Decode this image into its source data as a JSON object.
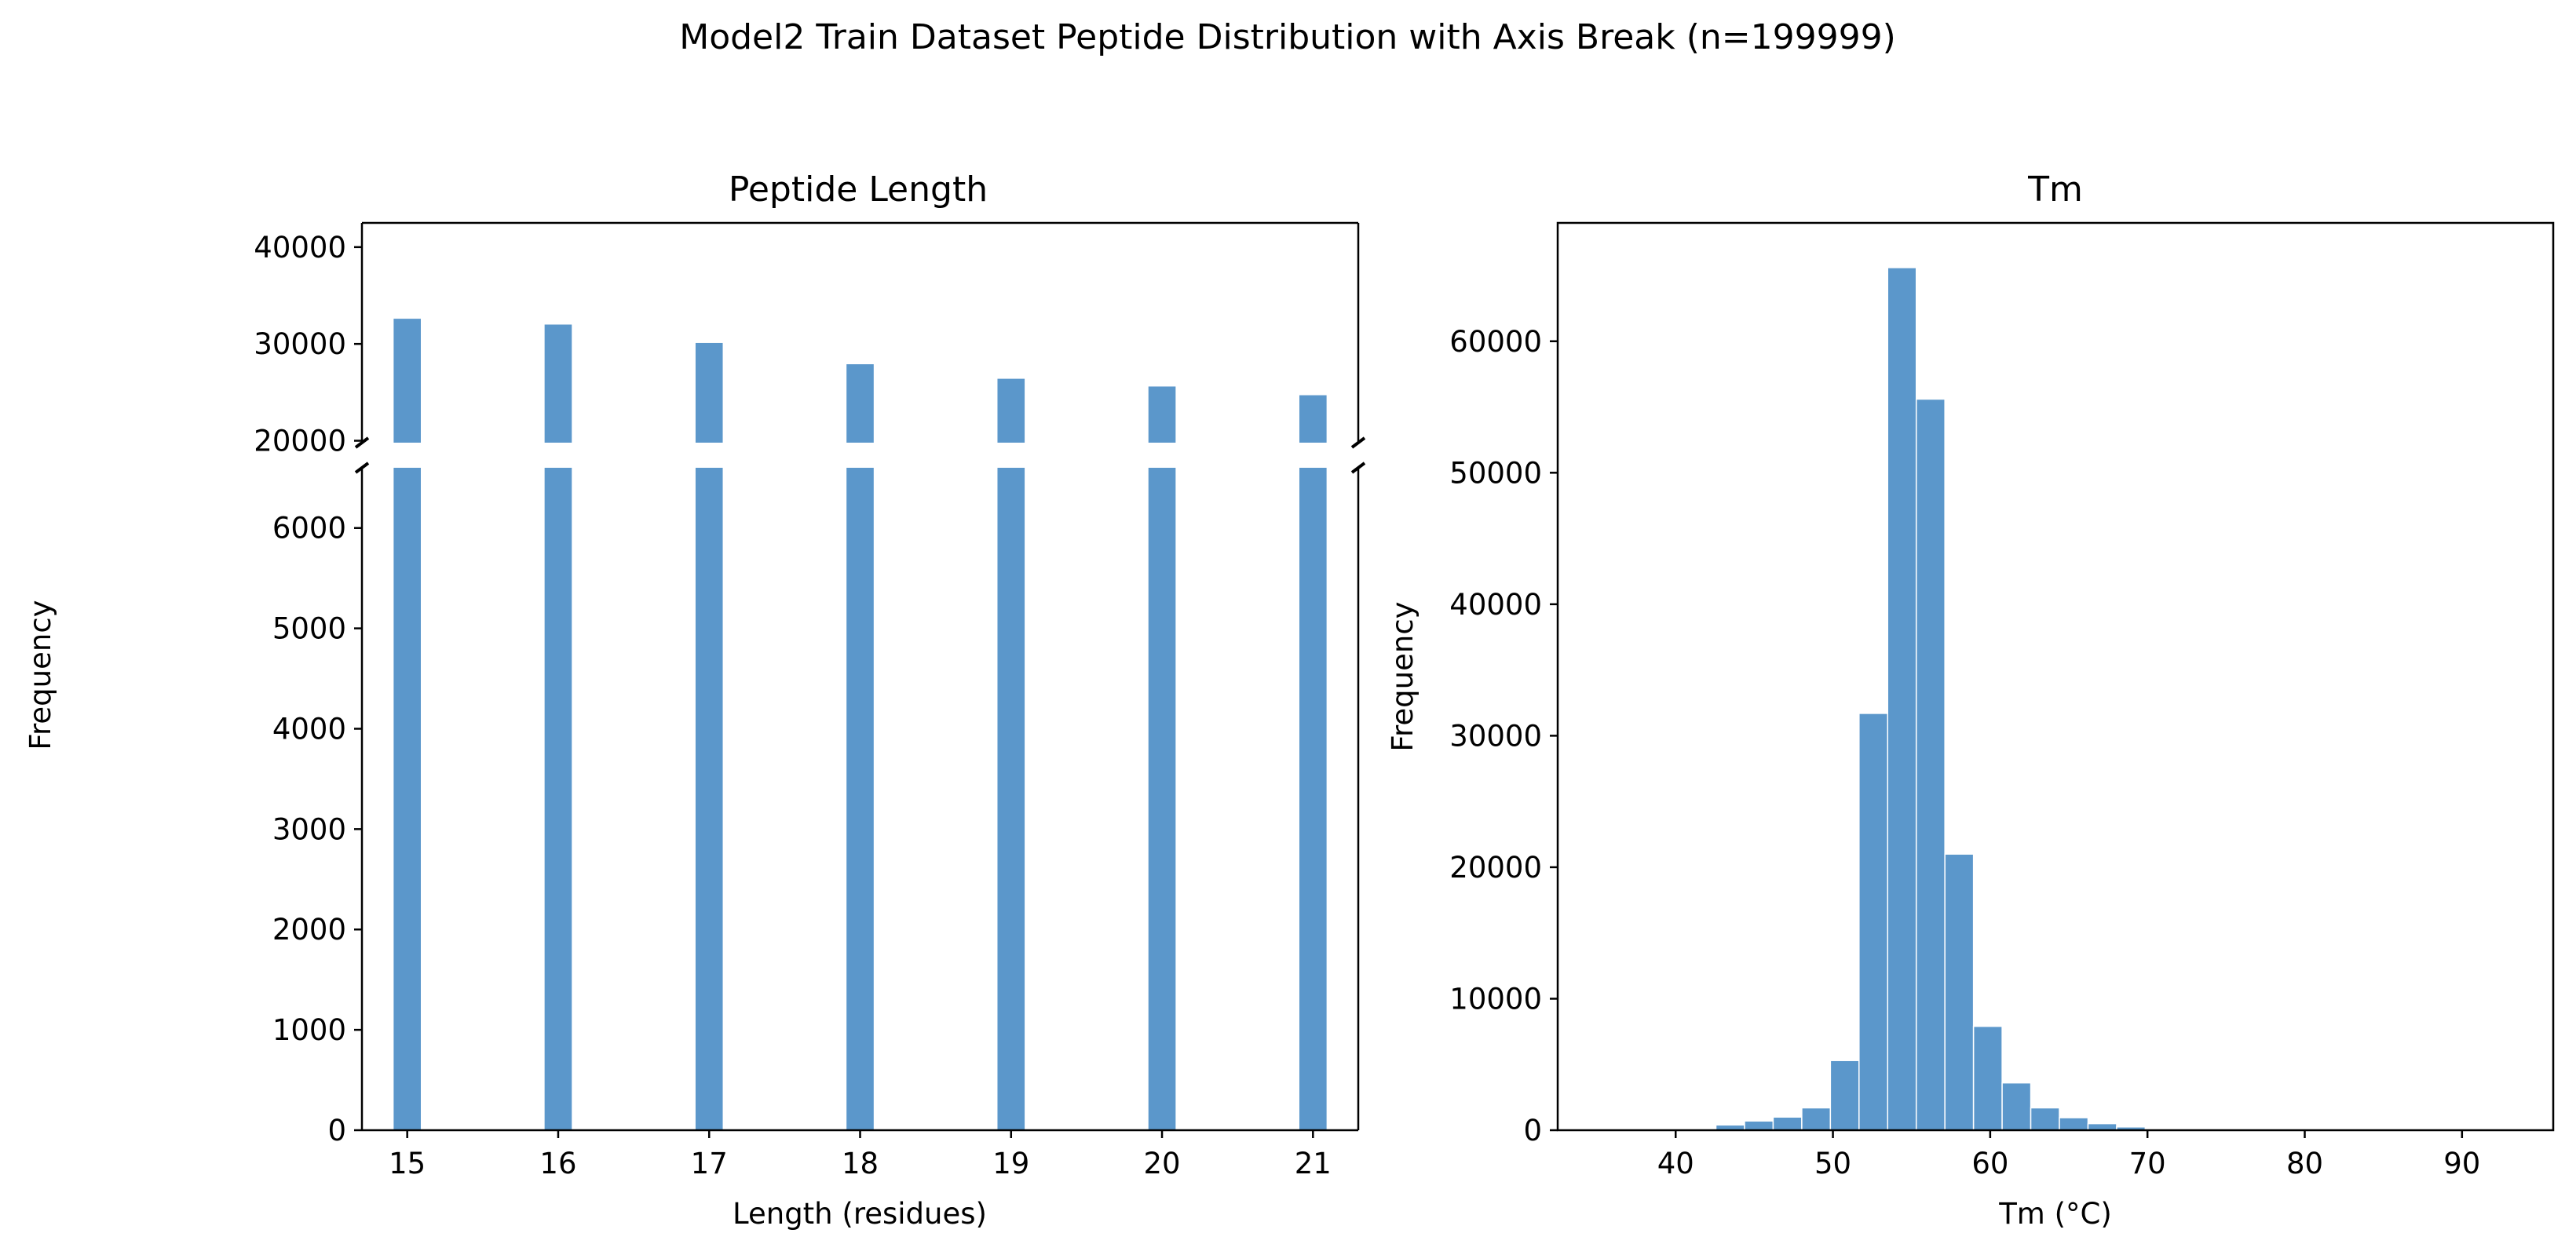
{
  "figure": {
    "title": "Model2 Train Dataset Peptide Distribution with Axis Break (n=199999)",
    "shared_ylabel": "Frequency"
  },
  "colors": {
    "bar": "#5b97cb",
    "axis": "#000000",
    "background": "#ffffff"
  },
  "chart_data": [
    {
      "type": "bar",
      "title": "Peptide Length",
      "xlabel": "Length (residues)",
      "ylabel": "Frequency",
      "axis_break": true,
      "xlim": [
        14.7,
        21.3
      ],
      "ylim_lower": [
        0,
        6600
      ],
      "ylim_upper": [
        19800,
        42500
      ],
      "x_ticks": [
        15,
        16,
        17,
        18,
        19,
        20,
        21
      ],
      "y_ticks_lower": [
        0,
        1000,
        2000,
        3000,
        4000,
        5000,
        6000
      ],
      "y_ticks_upper": [
        20000,
        30000,
        40000
      ],
      "categories": [
        15,
        16,
        17,
        18,
        19,
        20,
        21
      ],
      "values": [
        32600,
        32000,
        30100,
        27900,
        26400,
        25600,
        24700
      ],
      "grid": false,
      "legend": "none"
    },
    {
      "type": "bar",
      "title": "Tm",
      "xlabel": "Tm (°C)",
      "ylabel": "Frequency",
      "xlim": [
        32.5,
        95.8
      ],
      "ylim": [
        0,
        69000
      ],
      "x_ticks": [
        40,
        50,
        60,
        70,
        80,
        90
      ],
      "y_ticks": [
        0,
        10000,
        20000,
        30000,
        40000,
        50000,
        60000
      ],
      "bin_width": 1.82,
      "bin_edges": [
        35.28,
        37.1,
        38.92,
        40.74,
        42.56,
        44.38,
        46.2,
        48.02,
        49.84,
        51.66,
        53.48,
        55.3,
        57.12,
        58.94,
        60.76,
        62.58,
        64.4,
        66.22,
        68.04,
        69.86,
        71.68,
        73.5,
        75.32,
        77.14,
        78.96,
        80.78,
        82.6,
        84.42,
        86.24,
        88.06,
        89.88,
        91.7,
        93.52
      ],
      "values": [
        5,
        10,
        30,
        100,
        400,
        700,
        1000,
        1700,
        5300,
        31700,
        65600,
        55600,
        21000,
        7900,
        3600,
        1700,
        950,
        500,
        250,
        90,
        40,
        20,
        10,
        5,
        5,
        3,
        2,
        2,
        1,
        1,
        1,
        1
      ],
      "grid": false,
      "legend": "none"
    }
  ]
}
